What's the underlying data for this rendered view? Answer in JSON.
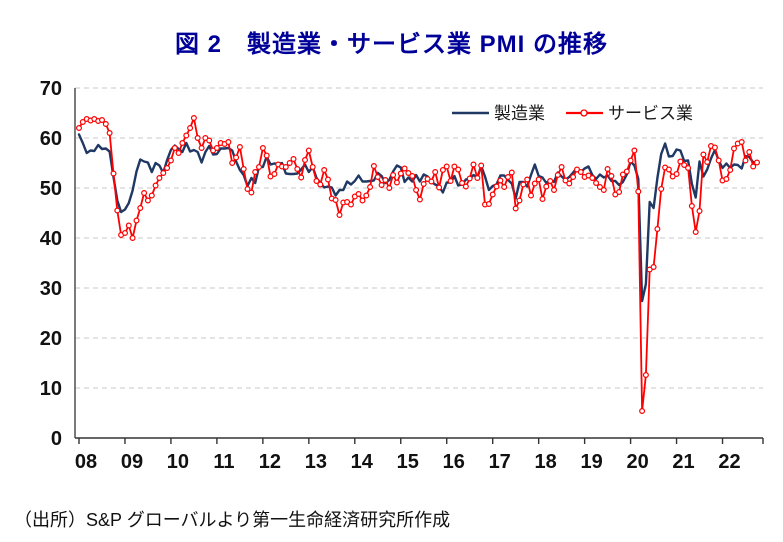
{
  "page": {
    "title": "図 2　製造業・サービス業 PMI の推移",
    "source_note": "（出所）S&P グローバルより第一生命経済研究所作成"
  },
  "colors": {
    "title": "#000099",
    "manufacturing_line": "#1f3864",
    "services_line": "#ff0000",
    "grid": "#c9c9c9",
    "axis": "#595959",
    "tick_label": "#111111"
  },
  "chart_data": {
    "type": "line",
    "title": "図 2　製造業・サービス業 PMI の推移",
    "x_unit": "month",
    "x_range": [
      "2008-01",
      "2022-10"
    ],
    "x_tick_labels": [
      "08",
      "09",
      "10",
      "11",
      "12",
      "13",
      "14",
      "15",
      "16",
      "17",
      "18",
      "19",
      "20",
      "21",
      "22"
    ],
    "xlabel": "",
    "ylabel": "",
    "ylim": [
      0,
      70
    ],
    "y_ticks": [
      0,
      10,
      20,
      30,
      40,
      50,
      60,
      70
    ],
    "grid": "horizontal dashed",
    "legend_position": "top-right inside plot",
    "series": [
      {
        "name": "製造業",
        "color": "#1f3864",
        "marker": "none",
        "values": [
          60.7,
          59.0,
          57.0,
          57.5,
          57.4,
          58.6,
          57.8,
          57.9,
          57.3,
          52.2,
          47.5,
          45.2,
          45.7,
          47.0,
          49.5,
          53.3,
          55.7,
          55.3,
          55.1,
          53.2,
          55.0,
          54.5,
          53.0,
          55.6,
          57.6,
          58.5,
          57.8,
          57.2,
          59.0,
          57.3,
          57.6,
          57.2,
          55.1,
          57.2,
          58.4,
          56.7,
          56.8,
          57.9,
          57.9,
          58.0,
          57.5,
          55.3,
          53.6,
          52.6,
          50.4,
          52.0,
          51.0,
          54.2,
          54.2,
          56.3,
          54.7,
          54.9,
          54.8,
          55.0,
          52.9,
          52.8,
          52.8,
          52.9,
          53.7,
          54.7,
          53.2,
          54.2,
          52.0,
          51.0,
          50.1,
          50.3,
          50.1,
          48.5,
          49.6,
          49.6,
          51.3,
          50.7,
          51.4,
          52.5,
          51.3,
          51.3,
          51.4,
          51.5,
          53.0,
          52.4,
          51.0,
          51.6,
          53.3,
          54.5,
          54.1,
          51.2,
          52.1,
          51.3,
          52.6,
          51.3,
          52.7,
          52.3,
          51.2,
          50.7,
          50.3,
          49.1,
          51.1,
          51.1,
          52.4,
          50.5,
          50.7,
          51.7,
          51.8,
          52.6,
          52.1,
          54.4,
          52.3,
          49.6,
          50.4,
          50.7,
          52.5,
          52.5,
          51.6,
          50.9,
          47.9,
          51.2,
          51.2,
          50.3,
          52.6,
          54.7,
          52.4,
          52.1,
          51.0,
          51.6,
          51.2,
          53.1,
          52.3,
          51.7,
          52.2,
          53.1,
          54.0,
          53.2,
          53.9,
          54.3,
          52.6,
          51.8,
          52.7,
          52.1,
          52.5,
          51.4,
          51.4,
          50.6,
          51.2,
          52.7,
          55.3,
          54.5,
          51.8,
          27.4,
          30.8,
          47.2,
          46.0,
          52.0,
          56.8,
          58.9,
          56.3,
          56.4,
          57.7,
          57.5,
          55.4,
          55.5,
          50.8,
          48.1,
          55.3,
          52.3,
          53.7,
          55.9,
          57.6,
          55.5,
          54.0,
          54.9,
          54.0,
          54.7,
          54.6,
          53.9,
          56.4,
          56.2,
          55.1,
          55.3
        ]
      },
      {
        "name": "サービス業",
        "color": "#ff0000",
        "marker": "open-circle",
        "values": [
          62.0,
          63.2,
          63.8,
          63.5,
          63.8,
          63.4,
          63.6,
          62.8,
          61.0,
          52.9,
          45.5,
          40.6,
          41.0,
          42.5,
          40.0,
          43.5,
          46.0,
          49.0,
          47.5,
          48.5,
          50.5,
          52.0,
          53.0,
          54.0,
          55.5,
          58.0,
          57.0,
          59.0,
          60.5,
          62.0,
          64.0,
          60.0,
          58.0,
          60.0,
          59.5,
          57.5,
          58.0,
          59.0,
          58.8,
          59.2,
          55.0,
          56.1,
          58.2,
          53.8,
          49.8,
          49.1,
          53.2,
          54.2,
          58.0,
          56.5,
          52.3,
          52.8,
          54.7,
          54.3,
          54.2,
          55.0,
          55.8,
          53.8,
          52.1,
          55.6,
          57.5,
          54.2,
          51.4,
          50.7,
          53.6,
          51.7,
          47.9,
          47.6,
          44.6,
          47.1,
          47.2,
          46.7,
          48.3,
          48.8,
          47.5,
          48.5,
          50.2,
          54.4,
          52.2,
          50.6,
          51.6,
          50.0,
          52.6,
          51.1,
          52.9,
          53.9,
          53.0,
          52.4,
          49.6,
          47.7,
          50.8,
          51.8,
          51.3,
          53.2,
          50.1,
          53.6,
          54.3,
          51.4,
          54.3,
          53.7,
          51.0,
          50.3,
          51.9,
          54.7,
          52.0,
          54.5,
          46.7,
          46.8,
          48.7,
          50.3,
          51.5,
          50.2,
          52.2,
          53.1,
          45.9,
          47.5,
          50.7,
          51.7,
          48.5,
          50.9,
          51.7,
          47.8,
          50.3,
          51.4,
          49.6,
          52.6,
          54.2,
          51.5,
          50.9,
          52.2,
          53.7,
          53.2,
          52.2,
          52.5,
          52.0,
          51.0,
          50.2,
          49.6,
          53.8,
          52.4,
          48.7,
          49.2,
          52.7,
          53.3,
          55.5,
          57.5,
          49.3,
          5.4,
          12.6,
          33.7,
          34.2,
          41.8,
          49.8,
          54.1,
          53.7,
          52.3,
          52.8,
          55.3,
          54.6,
          54.0,
          46.4,
          41.2,
          45.4,
          56.7,
          55.2,
          58.4,
          58.1,
          55.5,
          51.5,
          51.8,
          53.6,
          57.9,
          58.9,
          59.2,
          55.5,
          57.2,
          54.3,
          55.1
        ]
      }
    ]
  }
}
